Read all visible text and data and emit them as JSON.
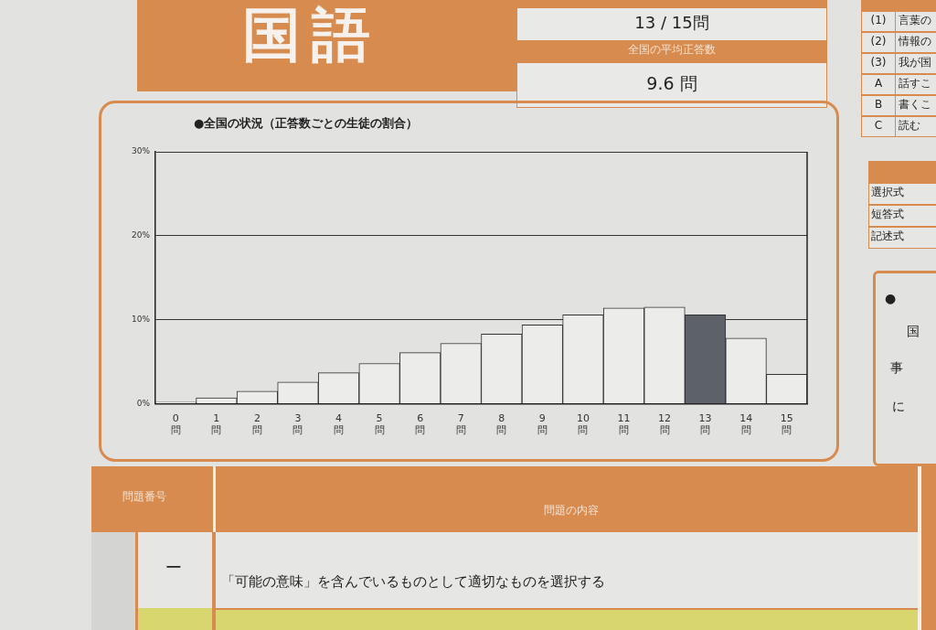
{
  "chart_data": {
    "type": "bar",
    "title": "●全国の状況（正答数ごとの生徒の割合）",
    "categories": [
      "0問",
      "1問",
      "2問",
      "3問",
      "4問",
      "5問",
      "6問",
      "7問",
      "8問",
      "9問",
      "10問",
      "11問",
      "12問",
      "13問",
      "14問",
      "15問"
    ],
    "values": [
      0.2,
      0.7,
      1.5,
      2.6,
      3.7,
      4.8,
      6.1,
      7.2,
      8.3,
      9.4,
      10.6,
      11.4,
      11.5,
      10.6,
      7.8,
      3.5
    ],
    "colors": [
      "#ececea",
      "#ececea",
      "#ececea",
      "#ececea",
      "#ececea",
      "#ececea",
      "#ececea",
      "#ececea",
      "#ececea",
      "#ececea",
      "#ececea",
      "#ececea",
      "#ececea",
      "#5d6168",
      "#ececea",
      "#ececea"
    ],
    "ylim": [
      0,
      30
    ],
    "yticks": [
      {
        "value": 0,
        "label": "0%"
      },
      {
        "value": 10,
        "label": "10%"
      },
      {
        "value": 20,
        "label": "20%"
      },
      {
        "value": 30,
        "label": "30%"
      }
    ],
    "grid": "y",
    "annotations": [
      "国語",
      "13 / 15問",
      "全国の平均正答数",
      "9.6 問",
      "(1)",
      "言葉の",
      "(2)",
      "情報の",
      "(3)",
      "我が国",
      "A",
      "話すこ",
      "B",
      "書くこ",
      "C",
      "読む",
      "選択式",
      "短答式",
      "記述式",
      "●",
      "国",
      "事",
      "に",
      "問題番号",
      "問題の内容",
      "一",
      "「可能の意味」を含んでいるものとして適切なものを選択する"
    ]
  }
}
